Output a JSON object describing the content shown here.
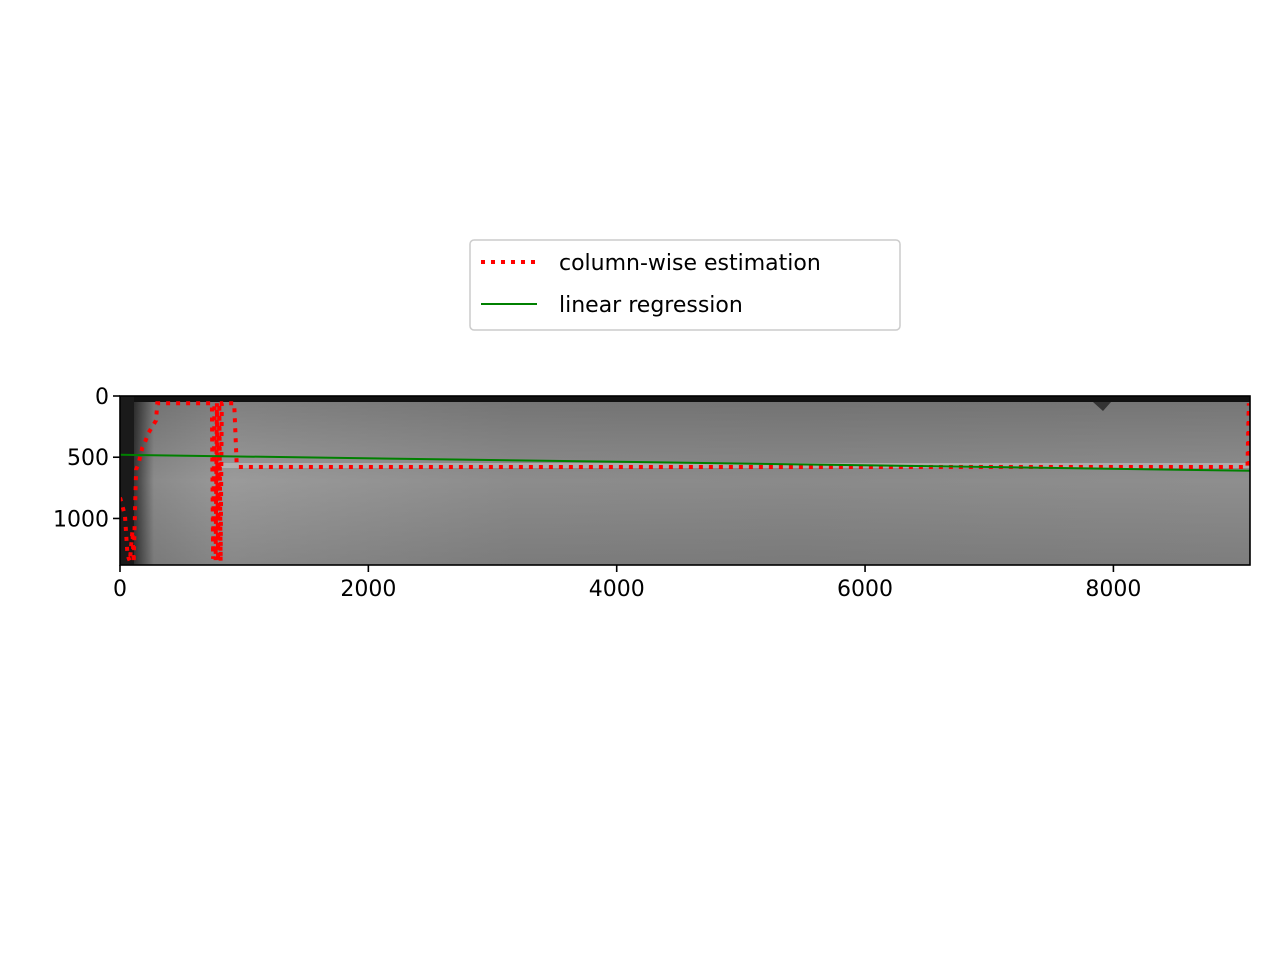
{
  "chart_data": {
    "type": "line",
    "title": "",
    "xlabel": "",
    "ylabel": "",
    "xlim": [
      0,
      9100
    ],
    "ylim": [
      1380,
      0
    ],
    "y_inverted": true,
    "xticks": [
      0,
      2000,
      4000,
      6000,
      8000
    ],
    "yticks": [
      0,
      500,
      1000
    ],
    "background": "grayscale-image",
    "legend": {
      "placement": "upper-center, above-axes"
    },
    "series": [
      {
        "name": "column-wise estimation",
        "style": "dotted",
        "color": "#ff0000",
        "x": [
          0,
          20,
          40,
          60,
          80,
          100,
          110,
          130,
          150,
          180,
          200,
          230,
          260,
          290,
          300,
          320,
          400,
          600,
          740,
          750,
          760,
          770,
          780,
          790,
          800,
          810,
          820,
          900,
          920,
          940,
          950,
          980,
          1000,
          2000,
          4000,
          6000,
          8000,
          9080,
          9090,
          9095
        ],
        "y": [
          830,
          900,
          980,
          1300,
          1350,
          1100,
          1360,
          600,
          550,
          420,
          380,
          300,
          250,
          200,
          60,
          60,
          60,
          60,
          60,
          1330,
          60,
          1340,
          60,
          1350,
          60,
          1350,
          60,
          60,
          60,
          560,
          580,
          580,
          580,
          580,
          580,
          580,
          580,
          580,
          60,
          580
        ]
      },
      {
        "name": "linear regression",
        "style": "solid",
        "color": "#008000",
        "x": [
          0,
          9100
        ],
        "y": [
          480,
          610
        ]
      }
    ]
  },
  "legend_labels": {
    "item0": "column-wise estimation",
    "item1": "linear regression"
  }
}
